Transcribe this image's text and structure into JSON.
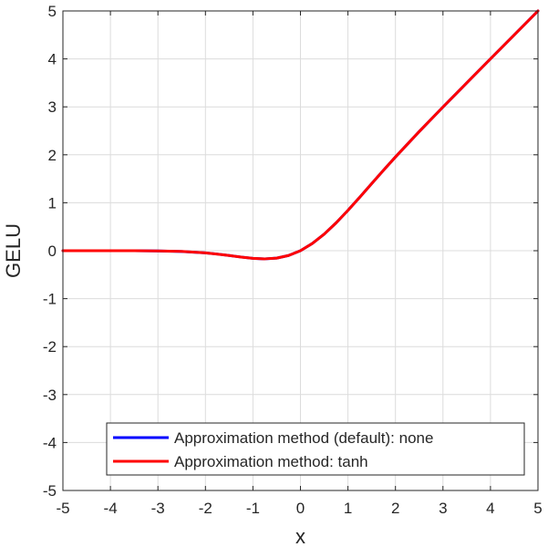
{
  "chart_data": {
    "type": "line",
    "title": "",
    "xlabel": "x",
    "ylabel": "GELU",
    "xlim": [
      -5,
      5
    ],
    "ylim": [
      -5,
      5
    ],
    "xticks": [
      "-5",
      "-4",
      "-3",
      "-2",
      "-1",
      "0",
      "1",
      "2",
      "3",
      "4",
      "5"
    ],
    "yticks": [
      "5",
      "4",
      "3",
      "2",
      "1",
      "0",
      "-1",
      "-2",
      "-3",
      "-4",
      "-5"
    ],
    "grid": true,
    "legend_position": "bottom-right",
    "x": [
      -5,
      -4.5,
      -4,
      -3.5,
      -3,
      -2.5,
      -2,
      -1.75,
      -1.5,
      -1.25,
      -1,
      -0.75,
      -0.5,
      -0.25,
      0,
      0.25,
      0.5,
      0.75,
      1,
      1.25,
      1.5,
      1.75,
      2,
      2.5,
      3,
      3.5,
      4,
      4.5,
      5
    ],
    "series": [
      {
        "name": "Approximation method (default): none",
        "color": "#0000ff",
        "values": [
          0,
          0,
          -0.0001,
          -0.0008,
          -0.004,
          -0.0155,
          -0.0455,
          -0.0702,
          -0.1002,
          -0.132,
          -0.1587,
          -0.1699,
          -0.1543,
          -0.0995,
          0,
          0.1505,
          0.3457,
          0.5801,
          0.8413,
          1.118,
          1.3998,
          1.6798,
          1.9545,
          2.4845,
          2.996,
          3.4992,
          3.9999,
          4.5,
          5
        ]
      },
      {
        "name": "Approximation method: tanh",
        "color": "#ff0000",
        "values": [
          0,
          0,
          -0.0001,
          -0.0008,
          -0.0036,
          -0.0153,
          -0.0454,
          -0.0703,
          -0.1005,
          -0.1323,
          -0.1588,
          -0.1699,
          -0.1543,
          -0.0995,
          0,
          0.1505,
          0.3457,
          0.5801,
          0.8412,
          1.1177,
          1.3995,
          1.6797,
          1.9546,
          2.4847,
          2.9964,
          3.4992,
          3.9999,
          4.5,
          5
        ]
      }
    ]
  }
}
